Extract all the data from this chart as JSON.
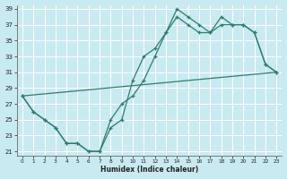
{
  "xlabel": "Humidex (Indice chaleur)",
  "xlim": [
    -0.5,
    23.5
  ],
  "ylim": [
    20.5,
    39.5
  ],
  "yticks": [
    21,
    23,
    25,
    27,
    29,
    31,
    33,
    35,
    37,
    39
  ],
  "xticks": [
    0,
    1,
    2,
    3,
    4,
    5,
    6,
    7,
    8,
    9,
    10,
    11,
    12,
    13,
    14,
    15,
    16,
    17,
    18,
    19,
    20,
    21,
    22,
    23
  ],
  "bg_color": "#c8eaf0",
  "line_color": "#2e7d6e",
  "grid_color": "#ffffff",
  "line1_x": [
    0,
    1,
    2,
    3,
    4,
    5,
    6,
    7,
    8,
    9,
    10,
    11,
    12,
    13,
    14,
    15,
    16,
    17,
    18,
    19,
    20,
    21,
    22,
    23
  ],
  "line1_y": [
    28,
    26,
    25,
    24,
    22,
    22,
    21,
    21,
    25,
    27,
    28,
    30,
    33,
    36,
    39,
    38,
    37,
    36,
    37,
    37,
    37,
    36,
    32,
    31
  ],
  "line2_x": [
    0,
    1,
    2,
    3,
    4,
    5,
    6,
    7,
    8,
    9,
    10,
    11,
    12,
    13,
    14,
    15,
    16,
    17,
    18,
    19,
    20,
    21,
    22,
    23
  ],
  "line2_y": [
    28,
    26,
    25,
    24,
    22,
    22,
    21,
    21,
    24,
    25,
    30,
    33,
    34,
    36,
    38,
    37,
    36,
    36,
    38,
    37,
    37,
    36,
    32,
    31
  ],
  "line3_x": [
    0,
    23
  ],
  "line3_y": [
    28,
    31
  ]
}
